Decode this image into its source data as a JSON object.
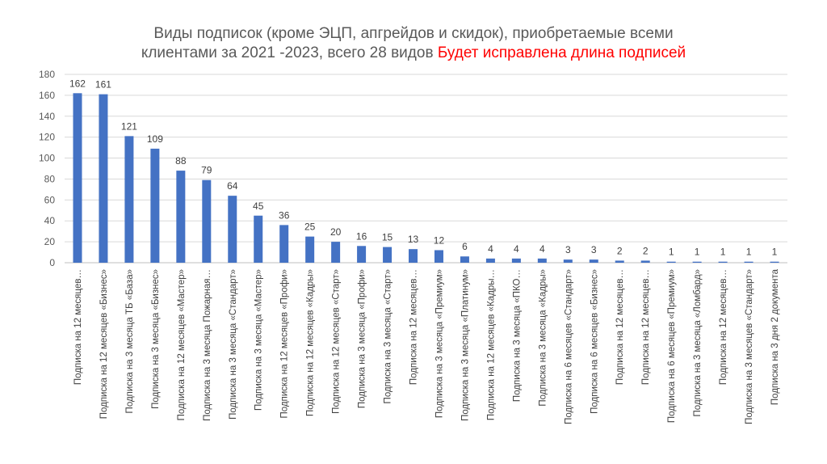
{
  "title": {
    "line1": "Виды подписок (кроме ЭЦП, апгрейдов и скидок), приобретаемые всеми",
    "line2": "клиентами за 2021 -2023, всего 28 видов",
    "highlight": "Будет исправлена длина подписей",
    "highlight_color": "#ff0000"
  },
  "chart_data": {
    "type": "bar",
    "title": "Виды подписок (кроме ЭЦП, апгрейдов и скидок), приобретаемые всеми клиентами за 2021 -2023, всего 28 видов",
    "xlabel": "",
    "ylabel": "",
    "ylim": [
      0,
      180
    ],
    "yticks": [
      "0",
      "20",
      "40",
      "60",
      "80",
      "100",
      "120",
      "140",
      "160",
      "180"
    ],
    "grid": true,
    "legend": "none",
    "bar_color": "#4472c4",
    "categories": [
      "Подписка на 12 месяцев…",
      "Подписка на 12 месяцев «Бизнес»",
      "Подписка на 3 месяца ТБ «База»",
      "Подписка на 3 месяца «Бизнес»",
      "Подписка на 12 месяцев «Мастер»",
      "Подписка на 3 месяца Пожарная…",
      "Подписка на 3 месяца «Стандарт»",
      "Подписка на 3 месяца «Мастер»",
      "Подписка на 12 месяцев «Профи»",
      "Подписка на 12 месяцев «Кадры»",
      "Подписка на 12 месяцев «Старт»",
      "Подписка на 3 месяца «Профи»",
      "Подписка на 3 месяца «Старт»",
      "Подписка на 12 месяцев…",
      "Подписка на 3 месяца «Премиум»",
      "Подписка на 3 месяца «Платинум»",
      "Подписка на 12 месяцев «Кадры…",
      "Подписка на 3 месяца «ПКО…",
      "Подписка на 3 месяца «Кадры»",
      "Подписка на 6 месяцев «Стандарт»",
      "Подписка на 6 месяцев «Бизнес»",
      "Подписка на 12 месяцев…",
      "Подписка на 12 месяцев…",
      "Подписка на 6 месяцев «Премиум»",
      "Подписка на 3 месяца «Ломбард»",
      "Подписка на 12 месяцев…",
      "Подписка на 3 месяцев «Стандарт»",
      "Подписка на 3 дня 2 документа"
    ],
    "values": [
      162,
      161,
      121,
      109,
      88,
      79,
      64,
      45,
      36,
      25,
      20,
      16,
      15,
      13,
      12,
      6,
      4,
      4,
      4,
      3,
      3,
      2,
      2,
      1,
      1,
      1,
      1,
      1
    ]
  }
}
